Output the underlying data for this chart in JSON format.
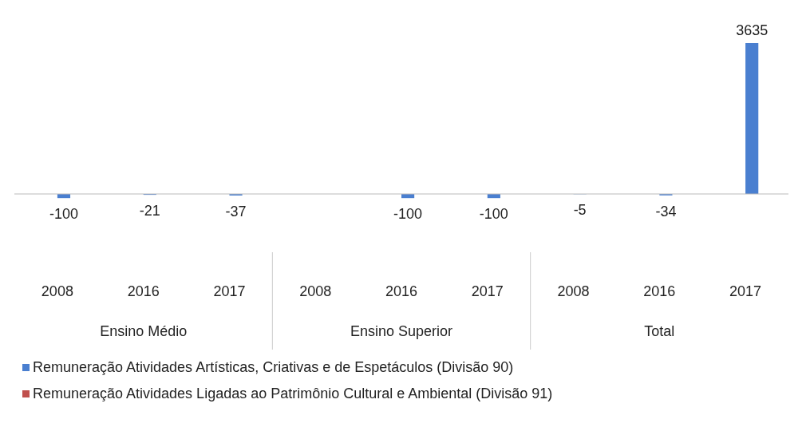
{
  "chart_data": {
    "type": "bar",
    "categories": [
      "2008",
      "2016",
      "2017",
      "2008",
      "2016",
      "2017",
      "2008",
      "2016",
      "2017"
    ],
    "series": [
      {
        "name": "Remuneração Atividades Artísticas, Criativas e de Espetáculos (Divisão 90)",
        "color": "#4a7fd0",
        "values": [
          -100,
          -21,
          -37,
          null,
          -100,
          -100,
          -5,
          -34,
          3635
        ],
        "value_labels": [
          "-100",
          "-21",
          "-37",
          null,
          "-100",
          "-100",
          "-5",
          "-34",
          "3635"
        ]
      },
      {
        "name": "Remuneração Atividades Ligadas ao Patrimônio Cultural e Ambiental (Divisão 91)",
        "color": "#c0504d",
        "values": [
          null,
          null,
          null,
          null,
          null,
          null,
          null,
          null,
          null
        ]
      }
    ],
    "annotations": [
      "Ensino Médio",
      "Ensino Superior",
      "Total"
    ],
    "legend": "bottom"
  }
}
